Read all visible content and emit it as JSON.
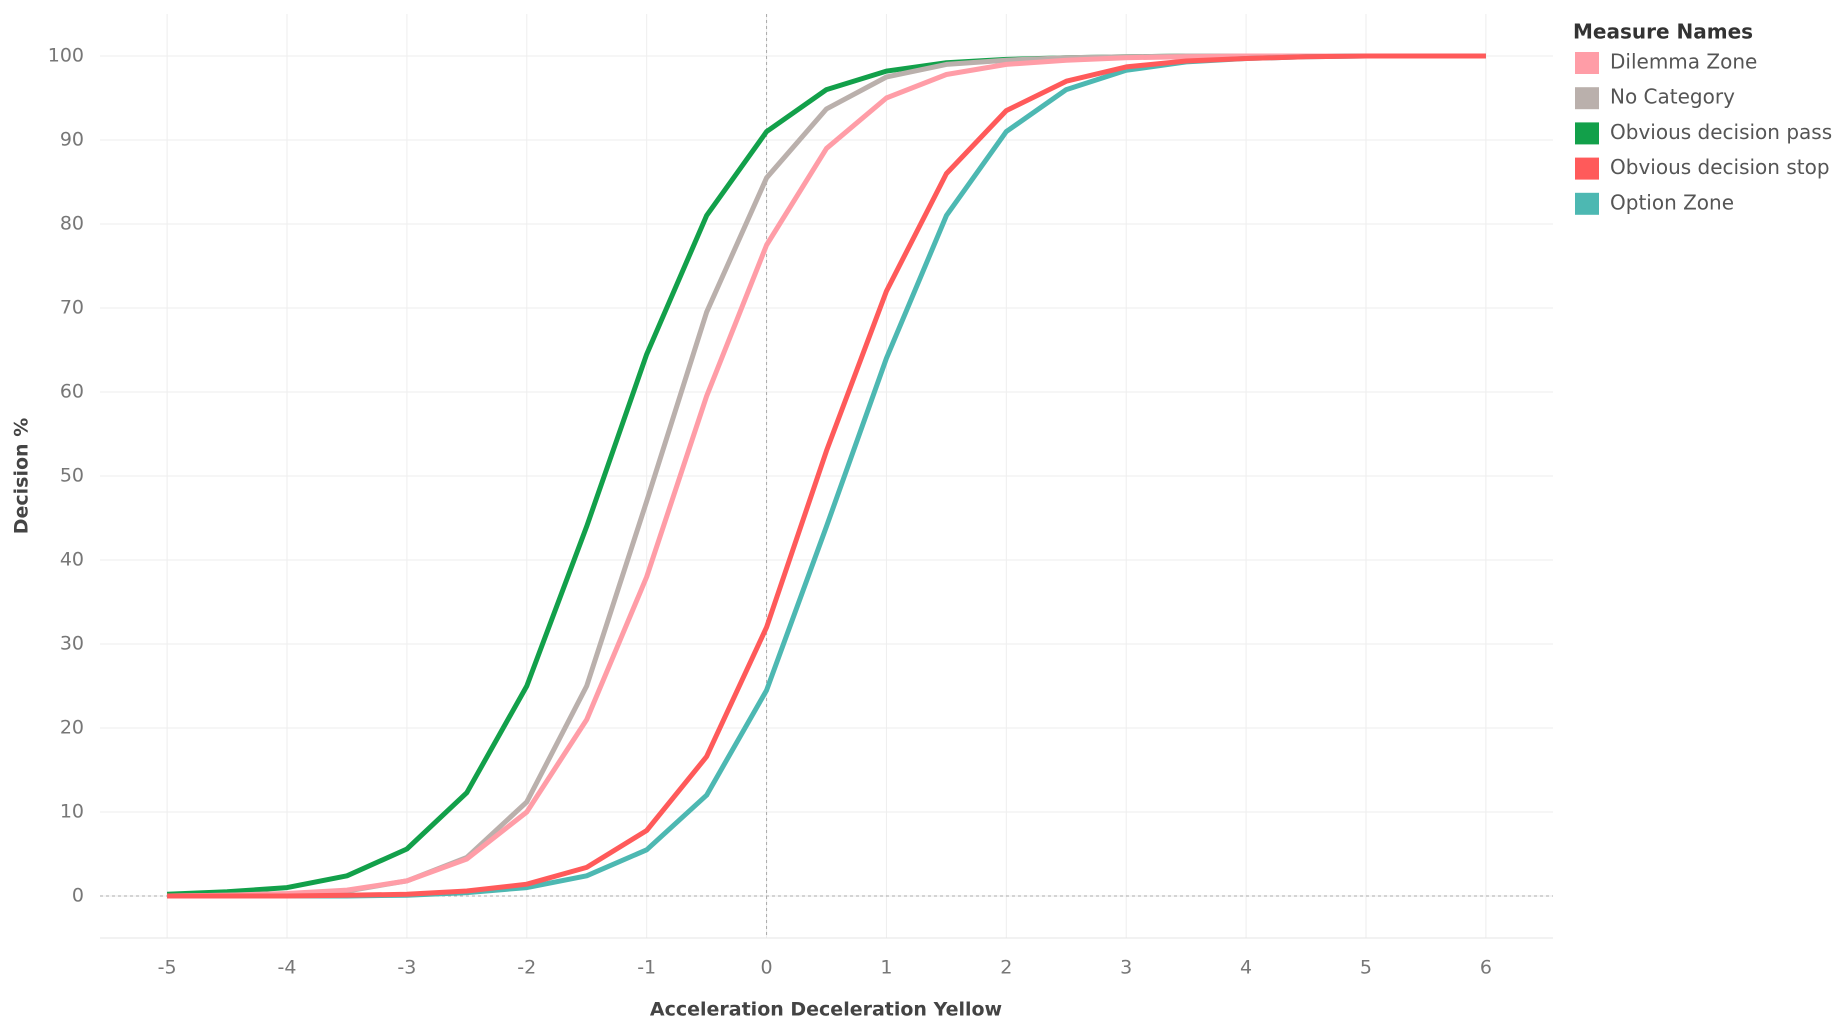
{
  "chart_data": {
    "type": "line",
    "x_label": "Acceleration Deceleration Yellow",
    "y_label": "Decision %",
    "legend_title": "Measure Names",
    "legend_position": "right",
    "grid": true,
    "zero_lines": true,
    "x": [
      -5,
      -4.5,
      -4,
      -3.5,
      -3,
      -2.5,
      -2,
      -1.5,
      -1,
      -0.5,
      0,
      0.5,
      1,
      1.5,
      2,
      2.5,
      3,
      3.5,
      4,
      4.5,
      5,
      5.5,
      6
    ],
    "xlim": [
      -5.56,
      6.56
    ],
    "xticks": [
      -5,
      -4,
      -3,
      -2,
      -1,
      0,
      1,
      2,
      3,
      4,
      5,
      6
    ],
    "ylim": [
      -5,
      105
    ],
    "yticks": [
      0,
      10,
      20,
      30,
      40,
      50,
      60,
      70,
      80,
      90,
      100
    ],
    "series": [
      {
        "name": "Obvious decision pass",
        "color": "#12a04a",
        "values": [
          0.2,
          0.5,
          1,
          2.4,
          5.6,
          12.3,
          25,
          44,
          64.5,
          81,
          91,
          96,
          98.2,
          99.2,
          99.6,
          99.8,
          99.9,
          100,
          100,
          100,
          100,
          100,
          100
        ]
      },
      {
        "name": "No Category",
        "color": "#bab0ac",
        "values": [
          0,
          0.1,
          0.2,
          0.6,
          1.8,
          4.6,
          11.2,
          25,
          47,
          69.5,
          85.5,
          93.7,
          97.5,
          99,
          99.5,
          99.8,
          99.9,
          100,
          100,
          100,
          100,
          100,
          100
        ]
      },
      {
        "name": "Dilemma Zone",
        "color": "#ff9da7",
        "values": [
          0,
          0.1,
          0.3,
          0.7,
          1.8,
          4.4,
          10,
          21,
          38,
          59.5,
          77.5,
          89,
          95,
          97.8,
          99,
          99.5,
          99.8,
          99.9,
          100,
          100,
          100,
          100,
          100
        ]
      },
      {
        "name": "Option Zone",
        "color": "#4db8b2",
        "values": [
          0,
          0,
          0,
          0,
          0.1,
          0.4,
          1,
          2.4,
          5.5,
          12,
          24.5,
          44,
          64,
          81,
          91,
          96,
          98.3,
          99.3,
          99.7,
          99.9,
          100,
          100,
          100
        ]
      },
      {
        "name": "Obvious decision stop",
        "color": "#ff5a5a",
        "values": [
          0,
          0,
          0,
          0.1,
          0.2,
          0.6,
          1.4,
          3.4,
          7.8,
          16.6,
          32,
          53,
          72,
          86,
          93.5,
          97,
          98.7,
          99.4,
          99.7,
          99.9,
          100,
          100,
          100
        ]
      }
    ],
    "legend_order": [
      2,
      1,
      0,
      4,
      3
    ]
  }
}
